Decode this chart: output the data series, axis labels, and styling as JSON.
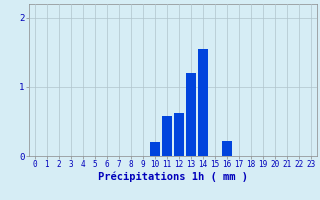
{
  "hours": [
    0,
    1,
    2,
    3,
    4,
    5,
    6,
    7,
    8,
    9,
    10,
    11,
    12,
    13,
    14,
    15,
    16,
    17,
    18,
    19,
    20,
    21,
    22,
    23
  ],
  "values": [
    0,
    0,
    0,
    0,
    0,
    0,
    0,
    0,
    0,
    0,
    0.2,
    0.58,
    0.62,
    1.2,
    1.55,
    0,
    0.22,
    0,
    0,
    0,
    0,
    0,
    0,
    0
  ],
  "bar_color": "#0044dd",
  "background_color": "#d6edf5",
  "grid_color": "#b0c4cc",
  "axis_color": "#888888",
  "text_color": "#0000bb",
  "xlabel": "Précipitations 1h ( mm )",
  "ylim": [
    0,
    2.2
  ],
  "yticks": [
    0,
    1,
    2
  ],
  "xlim": [
    -0.5,
    23.5
  ],
  "tick_fontsize": 5.5,
  "label_fontsize": 7.5
}
